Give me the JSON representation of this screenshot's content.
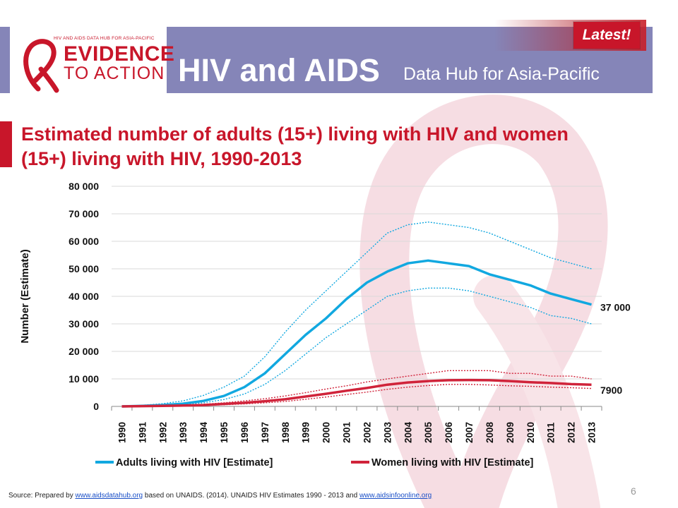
{
  "header": {
    "logo_tagline": "HIV AND AIDS DATA HUB FOR ASIA-PACIFIC",
    "logo_line1": "EVIDENCE",
    "logo_line2": "TO ACTION",
    "title": "HIV and AIDS",
    "subtitle": "Data Hub for Asia-Pacific",
    "badge": "Latest!",
    "colors": {
      "band": "#8585b8",
      "brand_red": "#c8162a"
    }
  },
  "slide_title": "Estimated number of adults (15+) living with HIV and women (15+) living with HIV, 1990-2013",
  "chart_data": {
    "type": "line",
    "title": "",
    "xlabel": "",
    "ylabel": "Number (Estimate)",
    "ylim": [
      0,
      80000
    ],
    "yticks": [
      "0",
      "10 000",
      "20 000",
      "30 000",
      "40 000",
      "50 000",
      "60 000",
      "70 000",
      "80 000"
    ],
    "x": [
      "1990",
      "1991",
      "1992",
      "1993",
      "1994",
      "1995",
      "1996",
      "1997",
      "1998",
      "1999",
      "2000",
      "2001",
      "2002",
      "2003",
      "2004",
      "2005",
      "2006",
      "2007",
      "2008",
      "2009",
      "2010",
      "2011",
      "2012",
      "2013"
    ],
    "grid": "horizontal",
    "legend_position": "bottom",
    "series": [
      {
        "name": "Adults living with HIV [Estimate]",
        "color": "#11a8e0",
        "values": [
          0,
          200,
          500,
          1000,
          2000,
          3800,
          7000,
          12000,
          19000,
          26000,
          32000,
          39000,
          45000,
          49000,
          52000,
          53000,
          52000,
          51000,
          48000,
          46000,
          44000,
          41000,
          39000,
          37000
        ],
        "upper": [
          0,
          400,
          1000,
          2000,
          4000,
          7000,
          11000,
          18000,
          27000,
          35000,
          42000,
          49000,
          56000,
          63000,
          66000,
          67000,
          66000,
          65000,
          63000,
          60000,
          57000,
          54000,
          52000,
          50000
        ],
        "lower": [
          0,
          100,
          300,
          700,
          1300,
          2500,
          4500,
          8000,
          13000,
          19000,
          25000,
          30000,
          35000,
          40000,
          42000,
          43000,
          43000,
          42000,
          40000,
          38000,
          36000,
          33000,
          32000,
          30000
        ],
        "end_label": "37 000"
      },
      {
        "name": "Women living with HIV [Estimate]",
        "color": "#d0233a",
        "values": [
          0,
          100,
          200,
          300,
          500,
          900,
          1300,
          1900,
          2600,
          3600,
          4600,
          5700,
          6700,
          7900,
          8700,
          9200,
          9500,
          9600,
          9500,
          9200,
          8800,
          8500,
          8100,
          7900
        ],
        "upper": [
          0,
          150,
          300,
          500,
          800,
          1300,
          2000,
          2800,
          3800,
          5000,
          6300,
          7500,
          8900,
          10000,
          11000,
          12000,
          13000,
          13000,
          13000,
          12000,
          12000,
          11000,
          11000,
          10000
        ],
        "lower": [
          0,
          50,
          100,
          200,
          350,
          600,
          900,
          1300,
          1800,
          2600,
          3400,
          4300,
          5200,
          6200,
          7000,
          7600,
          8000,
          8000,
          7800,
          7500,
          7300,
          7000,
          6800,
          6500
        ],
        "end_label": "7900"
      }
    ]
  },
  "source": {
    "prefix": "Source: Prepared by ",
    "link1": "www.aidsdatahub.org",
    "middle": " based on  UNAIDS. (2014). UNAIDS HIV Estimates 1990 - 2013 and ",
    "link2": "www.aidsinfoonline.org"
  },
  "page_number": "6"
}
